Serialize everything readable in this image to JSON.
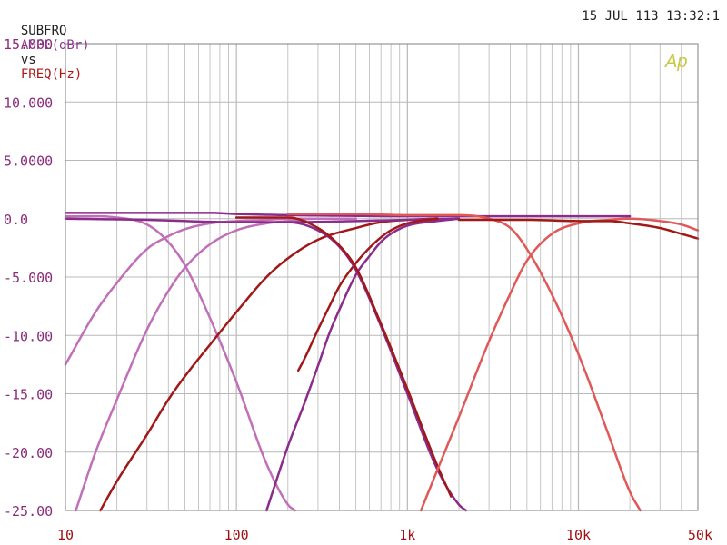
{
  "header": {
    "title_prefix": "SUBFRQ",
    "y_quantity": "AMPL(dBr)",
    "vs_word": "vs",
    "x_quantity": "FREQ(Hz)",
    "timestamp": "15 JUL 113 13:32:1"
  },
  "watermark": "Ap",
  "colors": {
    "prefix": "#222222",
    "y_quantity": "#8b3a8b",
    "x_quantity": "#b01818",
    "axis_text_y": "#8b2c7a",
    "axis_text_x": "#a01010",
    "grid": "#b8b8b8",
    "frame": "#808080",
    "watermark": "#c8c844"
  },
  "chart_data": {
    "type": "line",
    "x_scale": "log",
    "xlim": [
      10,
      50000
    ],
    "ylim": [
      -25,
      15
    ],
    "grid": true,
    "x_ticks": [
      {
        "value": 10,
        "label": "10"
      },
      {
        "value": 100,
        "label": "100"
      },
      {
        "value": 1000,
        "label": "1k"
      },
      {
        "value": 10000,
        "label": "10k"
      },
      {
        "value": 50000,
        "label": "50k"
      }
    ],
    "y_ticks": [
      {
        "value": 15,
        "label": "15.000"
      },
      {
        "value": 10,
        "label": "10.000"
      },
      {
        "value": 5,
        "label": "5.0000"
      },
      {
        "value": 0,
        "label": "0.0"
      },
      {
        "value": -5,
        "label": "-5.000"
      },
      {
        "value": -10,
        "label": "-10.00"
      },
      {
        "value": -15,
        "label": "-15.00"
      },
      {
        "value": -20,
        "label": "-20.00"
      },
      {
        "value": -25,
        "label": "-25.00"
      }
    ],
    "series": [
      {
        "color": "#c070b8",
        "width": 2.5,
        "x": [
          10,
          20,
          30,
          40,
          50,
          70,
          100,
          150,
          200,
          220
        ],
        "y": [
          0.2,
          0.1,
          -0.5,
          -2,
          -4,
          -8.5,
          -14,
          -21,
          -24.5,
          -25
        ]
      },
      {
        "color": "#c070b8",
        "width": 2.5,
        "x": [
          10,
          15,
          20,
          30,
          40,
          50,
          70,
          100,
          150,
          200,
          300,
          500
        ],
        "y": [
          -12.5,
          -8,
          -5.5,
          -2.6,
          -1.5,
          -0.9,
          -0.4,
          -0.2,
          -0.1,
          0,
          0,
          0
        ]
      },
      {
        "color": "#c070b8",
        "width": 2.5,
        "x": [
          11.5,
          15,
          20,
          30,
          40,
          50,
          70,
          100,
          150,
          200,
          300,
          500
        ],
        "y": [
          -25,
          -20,
          -15.5,
          -9.5,
          -6.2,
          -4.2,
          -2.2,
          -1.0,
          -0.4,
          -0.2,
          0,
          0
        ]
      },
      {
        "color": "#a01818",
        "width": 2.5,
        "x": [
          16,
          20,
          30,
          40,
          50,
          70,
          100,
          150,
          200,
          300,
          500,
          700,
          1000,
          1500
        ],
        "y": [
          -25,
          -22.5,
          -18.5,
          -15.5,
          -13.5,
          -10.8,
          -8,
          -5,
          -3.4,
          -1.8,
          -0.8,
          -0.3,
          -0.1,
          0
        ]
      },
      {
        "color": "#8b2c8b",
        "width": 2.5,
        "x": [
          10,
          30,
          70,
          100,
          200,
          400,
          1000,
          2000,
          5000,
          10000,
          20000
        ],
        "y": [
          0.5,
          0.5,
          0.5,
          0.4,
          0.3,
          0.25,
          0.2,
          0.2,
          0.2,
          0.2,
          0.2
        ]
      },
      {
        "color": "#8b2c8b",
        "width": 2.5,
        "x": [
          10,
          30,
          100,
          200,
          500,
          1000,
          2000
        ],
        "y": [
          0,
          -0.1,
          -0.3,
          -0.3,
          -0.2,
          -0.1,
          0
        ]
      },
      {
        "color": "#8b2c8b",
        "width": 2.5,
        "x": [
          150,
          200,
          250,
          300,
          350,
          400,
          500,
          600,
          700,
          800,
          1000,
          1500,
          2000
        ],
        "y": [
          -25,
          -19.5,
          -15.8,
          -12.6,
          -9.8,
          -7.8,
          -4.8,
          -3.2,
          -2,
          -1.3,
          -0.6,
          -0.2,
          0
        ]
      },
      {
        "color": "#a01818",
        "width": 2.5,
        "x": [
          230,
          250,
          300,
          350,
          400,
          500,
          600,
          700,
          800,
          1000,
          1500
        ],
        "y": [
          -13,
          -12,
          -9.5,
          -7.5,
          -5.8,
          -3.8,
          -2.5,
          -1.6,
          -1.0,
          -0.4,
          0
        ]
      },
      {
        "color": "#8b2c8b",
        "width": 2.5,
        "x": [
          100,
          200,
          300,
          400,
          500,
          700,
          1000,
          1500,
          2000,
          2200
        ],
        "y": [
          -0.3,
          -0.3,
          -1.0,
          -2.4,
          -4.4,
          -9.2,
          -15,
          -21.5,
          -24.5,
          -25
        ]
      },
      {
        "color": "#a01818",
        "width": 2.5,
        "x": [
          100,
          200,
          300,
          400,
          500,
          700,
          1000,
          1500,
          1800
        ],
        "y": [
          0.1,
          0.1,
          -0.8,
          -2.3,
          -4.2,
          -9,
          -14.6,
          -21.2,
          -23.8
        ]
      },
      {
        "color": "#e05858",
        "width": 2.5,
        "x": [
          200,
          500,
          1000,
          2000,
          3000,
          4000,
          5000,
          7000,
          10000,
          15000,
          20000,
          23000
        ],
        "y": [
          0.4,
          0.4,
          0.3,
          0.3,
          0,
          -0.8,
          -2.6,
          -6.5,
          -11.6,
          -18.5,
          -23.4,
          -25
        ]
      },
      {
        "color": "#e05858",
        "width": 2.5,
        "x": [
          1200,
          1500,
          2000,
          3000,
          4000,
          5000,
          7000,
          10000,
          15000,
          20000,
          30000,
          40000,
          50000
        ],
        "y": [
          -25,
          -21.5,
          -17,
          -10.5,
          -6.4,
          -3.6,
          -1.3,
          -0.4,
          -0.1,
          0,
          -0.2,
          -0.5,
          -1.0
        ]
      },
      {
        "color": "#a01818",
        "width": 2.5,
        "x": [
          2000,
          5000,
          10000,
          15000,
          20000,
          30000,
          40000,
          50000
        ],
        "y": [
          -0.1,
          -0.1,
          -0.2,
          -0.2,
          -0.4,
          -0.8,
          -1.3,
          -1.7
        ]
      }
    ]
  }
}
